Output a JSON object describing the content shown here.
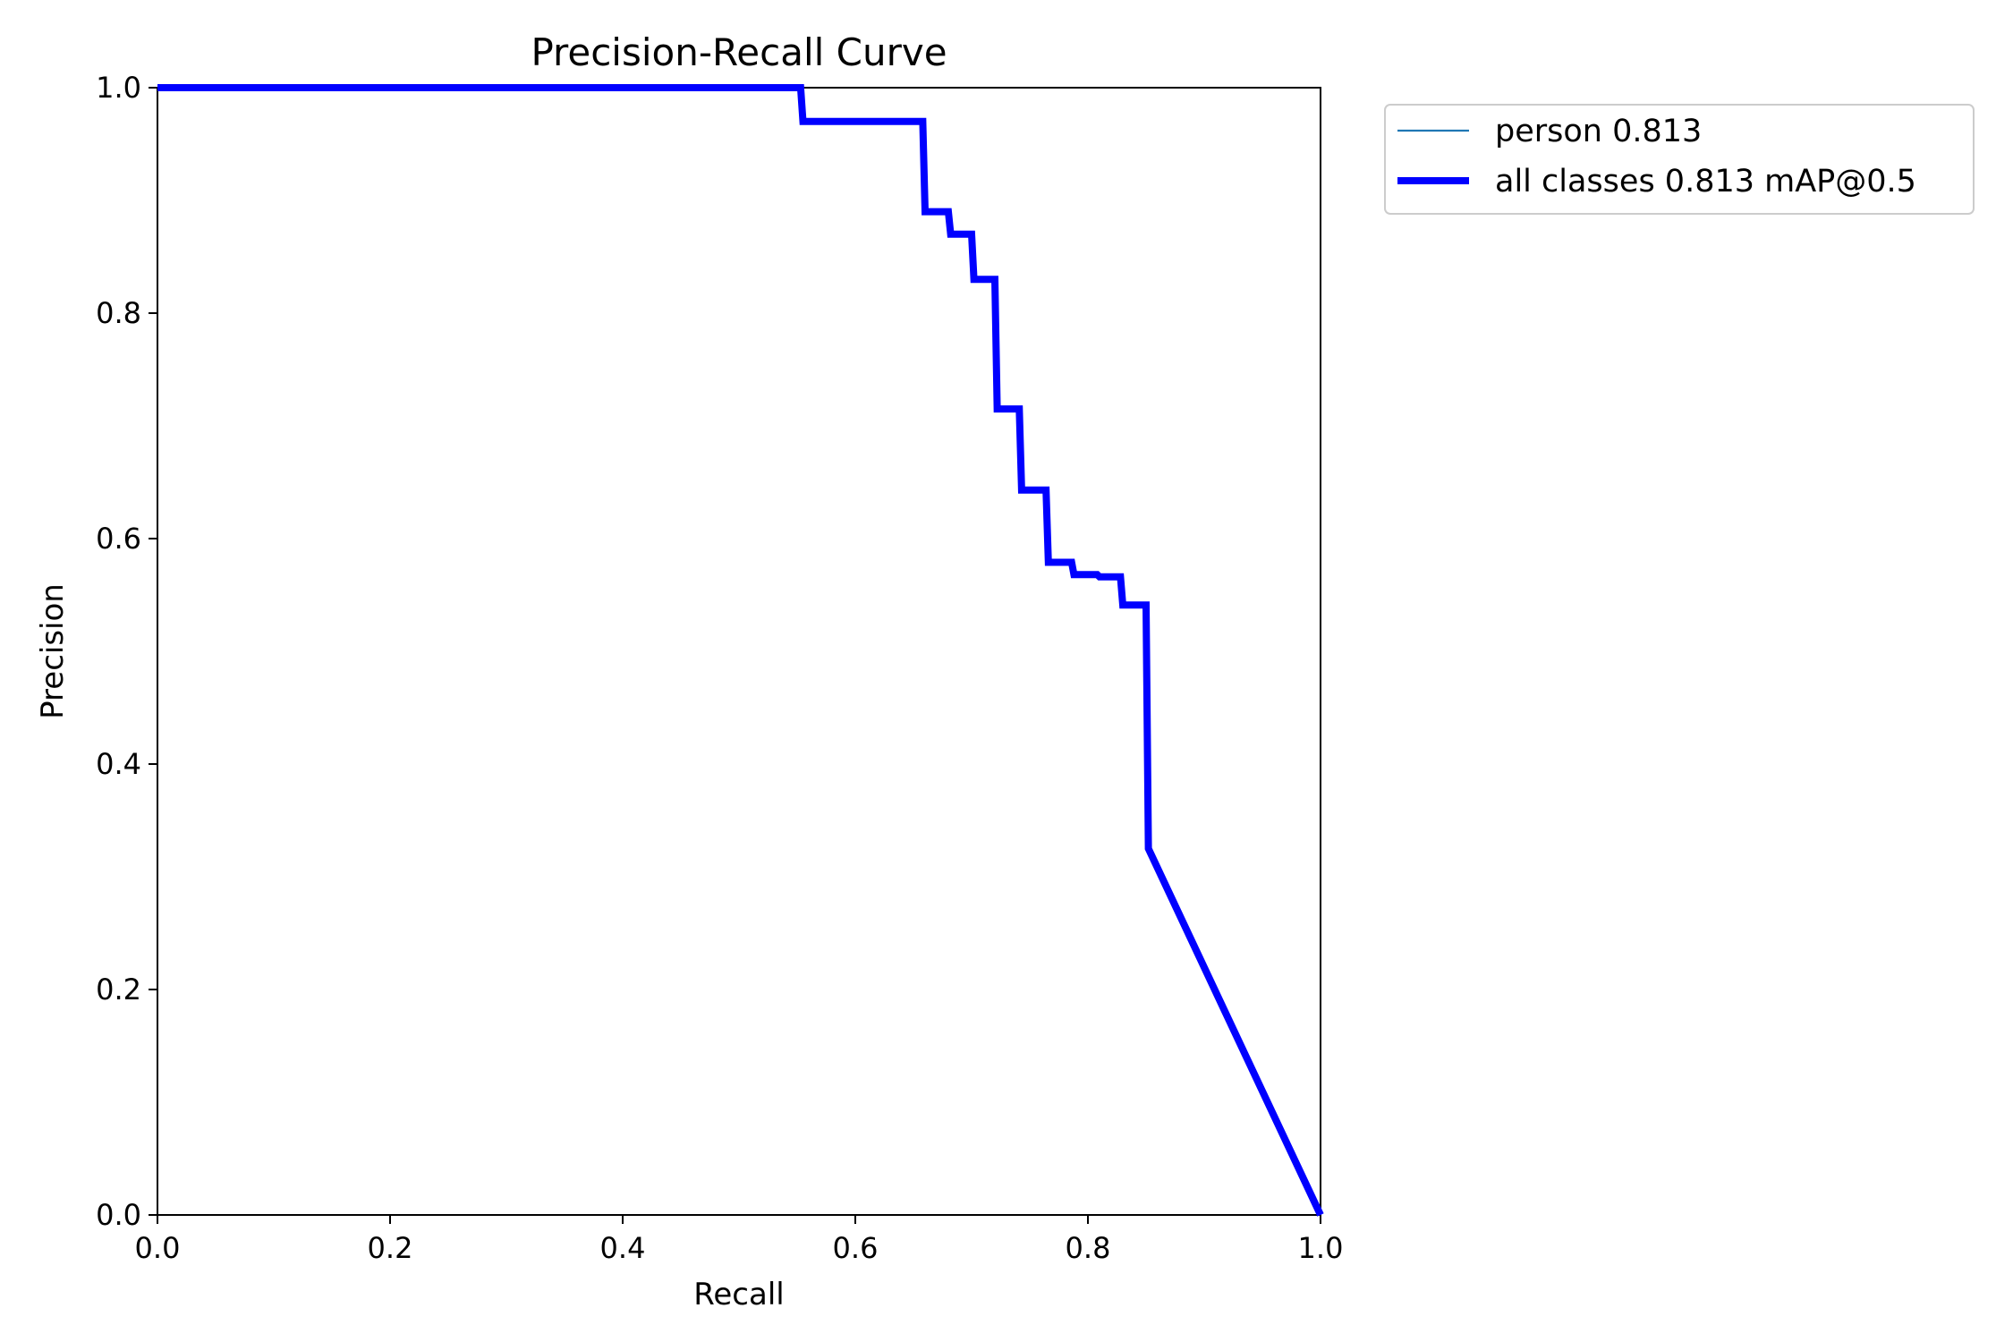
{
  "chart_data": {
    "type": "line",
    "title": "Precision-Recall Curve",
    "xlabel": "Recall",
    "ylabel": "Precision",
    "xlim": [
      0,
      1
    ],
    "ylim": [
      0,
      1
    ],
    "x_ticks": [
      "0.0",
      "0.2",
      "0.4",
      "0.6",
      "0.8",
      "1.0"
    ],
    "y_ticks": [
      "0.0",
      "0.2",
      "0.4",
      "0.6",
      "0.8",
      "1.0"
    ],
    "grid": false,
    "legend_position": "outside-top-right",
    "series": [
      {
        "name": "person 0.813",
        "color": "#1f77b4",
        "style": "thin",
        "x": [
          0.0,
          0.553,
          0.555,
          0.658,
          0.66,
          0.68,
          0.682,
          0.7,
          0.702,
          0.72,
          0.722,
          0.741,
          0.743,
          0.764,
          0.766,
          0.786,
          0.788,
          0.808,
          0.81,
          0.828,
          0.83,
          0.85,
          0.852,
          1.0
        ],
        "y": [
          1.0,
          1.0,
          0.97,
          0.97,
          0.89,
          0.89,
          0.87,
          0.87,
          0.83,
          0.83,
          0.715,
          0.715,
          0.643,
          0.643,
          0.579,
          0.579,
          0.568,
          0.568,
          0.566,
          0.566,
          0.541,
          0.541,
          0.325,
          0.0
        ]
      },
      {
        "name": "all classes 0.813 mAP@0.5",
        "color": "#0000ff",
        "style": "thick",
        "x": [
          0.0,
          0.553,
          0.555,
          0.658,
          0.66,
          0.68,
          0.682,
          0.7,
          0.702,
          0.72,
          0.722,
          0.741,
          0.743,
          0.764,
          0.766,
          0.786,
          0.788,
          0.808,
          0.81,
          0.828,
          0.83,
          0.85,
          0.852,
          1.0
        ],
        "y": [
          1.0,
          1.0,
          0.97,
          0.97,
          0.89,
          0.89,
          0.87,
          0.87,
          0.83,
          0.83,
          0.715,
          0.715,
          0.643,
          0.643,
          0.579,
          0.579,
          0.568,
          0.568,
          0.566,
          0.566,
          0.541,
          0.541,
          0.325,
          0.0
        ]
      }
    ]
  }
}
